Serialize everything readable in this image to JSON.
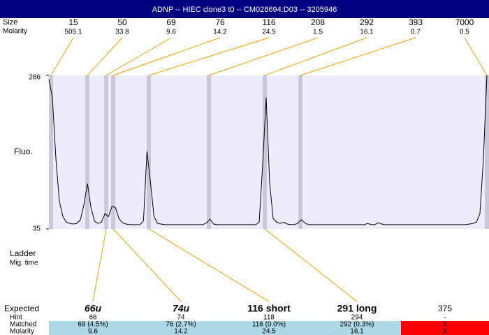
{
  "header": {
    "title": "ADNP -- HIEC clone3 t0 -- CM028694:D03 -- 3205946"
  },
  "ladder": {
    "labels": [
      "Size",
      "Molarity"
    ],
    "sizes": [
      15,
      50,
      69,
      76,
      116,
      208,
      292,
      393,
      7000
    ],
    "molarities": [
      505.1,
      33.8,
      9.6,
      14.2,
      24.5,
      1.5,
      16.1,
      0.7,
      0.5
    ]
  },
  "side_labels": [
    "Ladder",
    "Mig. time"
  ],
  "chart_data": {
    "type": "line",
    "y_label": "Fluo.",
    "ylim": [
      35,
      286
    ],
    "yticks": [
      35,
      286
    ],
    "color": "#000000",
    "values": [
      280,
      250,
      150,
      80,
      55,
      46,
      44,
      43,
      44,
      50,
      75,
      109,
      70,
      48,
      44,
      46,
      60,
      55,
      72,
      70,
      52,
      45,
      43,
      42,
      42,
      42,
      42,
      48,
      162,
      110,
      55,
      44,
      43,
      42,
      42,
      42,
      42,
      42,
      42,
      42,
      42,
      42,
      42,
      42,
      42,
      45,
      51,
      43,
      42,
      42,
      42,
      42,
      42,
      42,
      42,
      42,
      42,
      42,
      42,
      42,
      46,
      140,
      250,
      110,
      52,
      46,
      44,
      46,
      43,
      42,
      42,
      44,
      50,
      45,
      42,
      42,
      42,
      42,
      42,
      42,
      42,
      42,
      42,
      42,
      42,
      42,
      42,
      42,
      42,
      42,
      42,
      44,
      42,
      42,
      45,
      43,
      42,
      42,
      42,
      42,
      42,
      42,
      42,
      42,
      42,
      42,
      42,
      42,
      42,
      42,
      42,
      42,
      42,
      42,
      42,
      42,
      42,
      42,
      42,
      42,
      43,
      44,
      46,
      60,
      150,
      286
    ]
  },
  "results": {
    "row_labels": [
      "Expected",
      "Hint",
      "Matched",
      "Molarity"
    ],
    "columns": [
      {
        "expected": "66u",
        "hint": "66",
        "matched": "69 (4.5%)",
        "molarity": "9.6"
      },
      {
        "expected": "74u",
        "hint": "74",
        "matched": "76 (2.7%)",
        "molarity": "14.2"
      },
      {
        "expected": "116 short",
        "hint": "118",
        "matched": "116 (0.0%)",
        "molarity": "24.5"
      },
      {
        "expected": "291 long",
        "hint": "294",
        "matched": "292 (0.3%)",
        "molarity": "16.1"
      },
      {
        "expected": "375",
        "hint": "-",
        "matched": "X",
        "molarity": "X"
      }
    ]
  }
}
